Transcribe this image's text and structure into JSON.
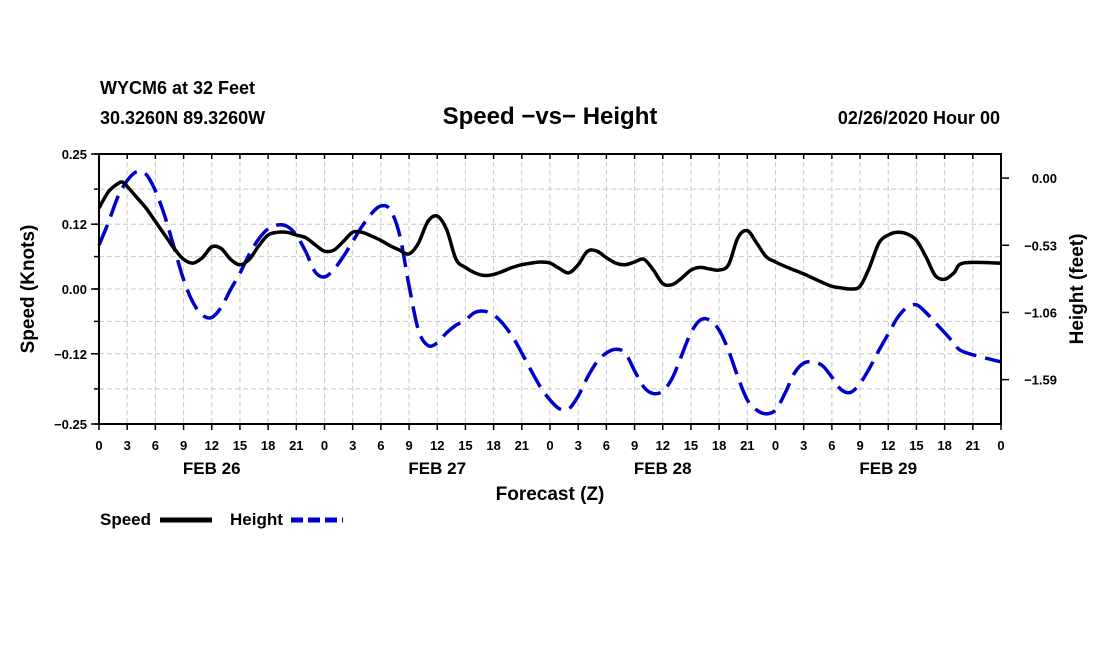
{
  "chart_data": {
    "type": "line",
    "station": "WYCM6 at 32 Feet",
    "location": "30.3260N 89.3260W",
    "title": "Speed −vs− Height",
    "datetime": "02/26/2020 Hour 00",
    "xlabel": "Forecast (Z)",
    "ylabel_left": "Speed (Knots)",
    "ylabel_right": "Height (feet)",
    "x_hours_range": [
      0,
      96
    ],
    "x_tick_labels": [
      "0",
      "3",
      "6",
      "9",
      "12",
      "15",
      "18",
      "21",
      "0",
      "3",
      "6",
      "9",
      "12",
      "15",
      "18",
      "21",
      "0",
      "3",
      "6",
      "9",
      "12",
      "15",
      "18",
      "21",
      "0",
      "3",
      "6",
      "9",
      "12",
      "15",
      "18",
      "21",
      "0"
    ],
    "day_labels": [
      {
        "hour": 12,
        "label": "FEB 26"
      },
      {
        "hour": 36,
        "label": "FEB 27"
      },
      {
        "hour": 60,
        "label": "FEB 28"
      },
      {
        "hour": 84,
        "label": "FEB 29"
      }
    ],
    "y_left": {
      "range": [
        -0.25,
        0.25
      ],
      "ticks": [
        0.25,
        0.12,
        0.0,
        -0.12,
        -0.25
      ],
      "tick_labels": [
        "0.25",
        "0.12",
        "0.00",
        "−0.12",
        "−0.25"
      ]
    },
    "y_right": {
      "range": [
        -1.94,
        0.19
      ],
      "ticks": [
        0.0,
        -0.53,
        -1.06,
        -1.59
      ],
      "tick_labels": [
        "0.00",
        "−0.53",
        "−1.06",
        "−1.59"
      ]
    },
    "legend": {
      "position": "bottom-left",
      "items": [
        "Speed",
        "Height"
      ]
    },
    "series": [
      {
        "name": "Speed",
        "axis": "left",
        "color": "#000000",
        "dash": false,
        "points": [
          [
            0,
            0.15
          ],
          [
            1,
            0.18
          ],
          [
            2,
            0.195
          ],
          [
            2.5,
            0.198
          ],
          [
            3,
            0.19
          ],
          [
            4,
            0.17
          ],
          [
            5,
            0.15
          ],
          [
            6,
            0.125
          ],
          [
            7,
            0.1
          ],
          [
            8,
            0.075
          ],
          [
            9,
            0.055
          ],
          [
            10,
            0.048
          ],
          [
            11,
            0.058
          ],
          [
            12,
            0.078
          ],
          [
            13,
            0.075
          ],
          [
            14,
            0.055
          ],
          [
            15,
            0.045
          ],
          [
            16,
            0.055
          ],
          [
            17,
            0.08
          ],
          [
            18,
            0.1
          ],
          [
            19,
            0.105
          ],
          [
            20,
            0.105
          ],
          [
            21,
            0.1
          ],
          [
            22,
            0.095
          ],
          [
            23,
            0.082
          ],
          [
            24,
            0.07
          ],
          [
            25,
            0.072
          ],
          [
            26,
            0.088
          ],
          [
            27,
            0.105
          ],
          [
            28,
            0.105
          ],
          [
            29,
            0.098
          ],
          [
            30,
            0.09
          ],
          [
            31,
            0.08
          ],
          [
            32,
            0.072
          ],
          [
            33,
            0.065
          ],
          [
            34,
            0.085
          ],
          [
            35,
            0.125
          ],
          [
            36,
            0.135
          ],
          [
            37,
            0.11
          ],
          [
            38,
            0.055
          ],
          [
            39,
            0.04
          ],
          [
            40,
            0.03
          ],
          [
            41,
            0.025
          ],
          [
            42,
            0.027
          ],
          [
            43,
            0.033
          ],
          [
            44,
            0.04
          ],
          [
            45,
            0.045
          ],
          [
            46,
            0.048
          ],
          [
            47,
            0.05
          ],
          [
            48,
            0.048
          ],
          [
            49,
            0.038
          ],
          [
            50,
            0.03
          ],
          [
            51,
            0.045
          ],
          [
            52,
            0.07
          ],
          [
            53,
            0.07
          ],
          [
            54,
            0.058
          ],
          [
            55,
            0.048
          ],
          [
            56,
            0.045
          ],
          [
            57,
            0.05
          ],
          [
            58,
            0.055
          ],
          [
            59,
            0.035
          ],
          [
            60,
            0.01
          ],
          [
            61,
            0.008
          ],
          [
            62,
            0.02
          ],
          [
            63,
            0.035
          ],
          [
            64,
            0.04
          ],
          [
            65,
            0.037
          ],
          [
            66,
            0.035
          ],
          [
            67,
            0.045
          ],
          [
            68,
            0.095
          ],
          [
            69,
            0.108
          ],
          [
            70,
            0.085
          ],
          [
            71,
            0.06
          ],
          [
            72,
            0.05
          ],
          [
            73,
            0.042
          ],
          [
            74,
            0.035
          ],
          [
            75,
            0.028
          ],
          [
            76,
            0.02
          ],
          [
            77,
            0.012
          ],
          [
            78,
            0.005
          ],
          [
            79,
            0.002
          ],
          [
            80,
            0.0
          ],
          [
            81,
            0.005
          ],
          [
            82,
            0.04
          ],
          [
            83,
            0.085
          ],
          [
            84,
            0.1
          ],
          [
            85,
            0.105
          ],
          [
            86,
            0.102
          ],
          [
            87,
            0.09
          ],
          [
            88,
            0.06
          ],
          [
            89,
            0.025
          ],
          [
            90,
            0.018
          ],
          [
            91,
            0.03
          ],
          [
            92,
            0.048
          ],
          [
            96,
            0.048
          ]
        ]
      },
      {
        "name": "Height",
        "axis": "right",
        "color": "#0000cc",
        "dash": true,
        "points": [
          [
            0,
            -0.53
          ],
          [
            1,
            -0.35
          ],
          [
            2,
            -0.15
          ],
          [
            3,
            -0.02
          ],
          [
            4,
            0.05
          ],
          [
            5,
            0.03
          ],
          [
            6,
            -0.1
          ],
          [
            7,
            -0.3
          ],
          [
            8,
            -0.55
          ],
          [
            9,
            -0.8
          ],
          [
            10,
            -0.98
          ],
          [
            11,
            -1.08
          ],
          [
            12,
            -1.1
          ],
          [
            13,
            -1.02
          ],
          [
            14,
            -0.88
          ],
          [
            15,
            -0.75
          ],
          [
            16,
            -0.6
          ],
          [
            17,
            -0.48
          ],
          [
            18,
            -0.4
          ],
          [
            19,
            -0.37
          ],
          [
            20,
            -0.38
          ],
          [
            21,
            -0.45
          ],
          [
            22,
            -0.58
          ],
          [
            23,
            -0.74
          ],
          [
            24,
            -0.78
          ],
          [
            25,
            -0.72
          ],
          [
            26,
            -0.62
          ],
          [
            27,
            -0.5
          ],
          [
            28,
            -0.38
          ],
          [
            29,
            -0.28
          ],
          [
            30,
            -0.22
          ],
          [
            31,
            -0.25
          ],
          [
            32,
            -0.45
          ],
          [
            33,
            -0.85
          ],
          [
            34,
            -1.2
          ],
          [
            35,
            -1.32
          ],
          [
            36,
            -1.3
          ],
          [
            37,
            -1.22
          ],
          [
            38,
            -1.16
          ],
          [
            39,
            -1.12
          ],
          [
            40,
            -1.06
          ],
          [
            41,
            -1.05
          ],
          [
            42,
            -1.08
          ],
          [
            43,
            -1.15
          ],
          [
            44,
            -1.25
          ],
          [
            45,
            -1.38
          ],
          [
            46,
            -1.52
          ],
          [
            47,
            -1.65
          ],
          [
            48,
            -1.75
          ],
          [
            49,
            -1.82
          ],
          [
            50,
            -1.82
          ],
          [
            51,
            -1.72
          ],
          [
            52,
            -1.57
          ],
          [
            53,
            -1.45
          ],
          [
            54,
            -1.38
          ],
          [
            55,
            -1.35
          ],
          [
            56,
            -1.38
          ],
          [
            57,
            -1.52
          ],
          [
            58,
            -1.65
          ],
          [
            59,
            -1.7
          ],
          [
            60,
            -1.68
          ],
          [
            61,
            -1.58
          ],
          [
            62,
            -1.4
          ],
          [
            63,
            -1.22
          ],
          [
            64,
            -1.12
          ],
          [
            65,
            -1.12
          ],
          [
            66,
            -1.2
          ],
          [
            67,
            -1.36
          ],
          [
            68,
            -1.57
          ],
          [
            69,
            -1.75
          ],
          [
            70,
            -1.83
          ],
          [
            71,
            -1.86
          ],
          [
            72,
            -1.83
          ],
          [
            73,
            -1.7
          ],
          [
            74,
            -1.54
          ],
          [
            75,
            -1.46
          ],
          [
            76,
            -1.45
          ],
          [
            77,
            -1.48
          ],
          [
            78,
            -1.57
          ],
          [
            79,
            -1.67
          ],
          [
            80,
            -1.69
          ],
          [
            81,
            -1.62
          ],
          [
            82,
            -1.5
          ],
          [
            83,
            -1.36
          ],
          [
            84,
            -1.23
          ],
          [
            85,
            -1.1
          ],
          [
            86,
            -1.02
          ],
          [
            87,
            -1.0
          ],
          [
            88,
            -1.06
          ],
          [
            89,
            -1.14
          ],
          [
            90,
            -1.22
          ],
          [
            91,
            -1.3
          ],
          [
            92,
            -1.37
          ],
          [
            96,
            -1.45
          ]
        ]
      }
    ]
  }
}
